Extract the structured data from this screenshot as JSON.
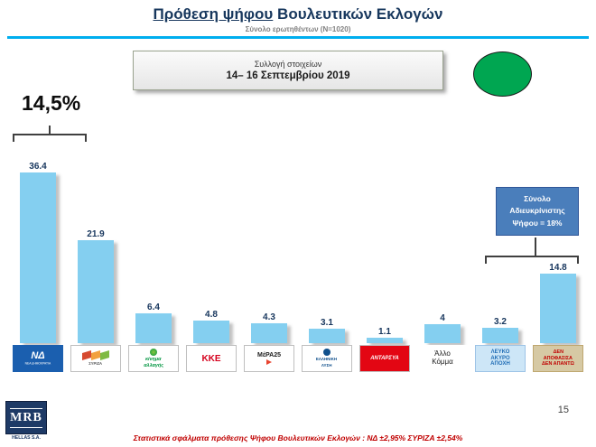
{
  "header": {
    "title_underline": "Πρόθεση ψήφου",
    "title_rest": " Βουλευτικών Εκλογών",
    "subtitle": "Σύνολο ερωτηθέντων (N=1020)"
  },
  "collection_box": {
    "line1": "Συλλογή στοιχείων",
    "line2": "14– 16 Σεπτεμβρίου 2019"
  },
  "annotations": {
    "difference_label": "14,5%",
    "undecided_note": "Σύνολο Αδιευκρίνιστης Ψήφου = 18%"
  },
  "footer": {
    "note": "Στατιστικά σφάλματα πρόθεσης Ψήφου Βουλευτικών Εκλογών : ΝΔ ±2,95% ΣΥΡΙΖΑ ±2,54%",
    "page_number": "15",
    "logo_text": "MRB",
    "logo_subtext": "HELLAS S.A."
  },
  "colors": {
    "bar": "#84CFF0",
    "accent_line": "#00AEEF",
    "undecided_box_bg": "#4A7EBB",
    "green_oval": "#00A651",
    "footer_text": "#C00000",
    "title_text": "#17375D"
  },
  "chart_data": {
    "type": "bar",
    "title": "Πρόθεση ψήφου Βουλευτικών Εκλογών",
    "subtitle": "Σύνολο ερωτηθέντων (N=1020)",
    "categories": [
      "ΝΔ (ΝΕΑ ΔΗΜΟΚΡΑΤΙΑ)",
      "ΣΥΡΙΖΑ",
      "ΚΙΝΗΜΑ ΑΛΛΑΓΗΣ",
      "ΚΚΕ",
      "ΜέΡΑ25",
      "ΕΛΛΗΝΙΚΗ ΛΥΣΗ",
      "ΑΝΤΑΡΣΥΑ",
      "Άλλο Κόμμα",
      "ΛΕΥΚΟ ΑΚΥΡΟ ΑΠΟΧΗ",
      "ΔΕΝ ΑΠΟΦΑΣΙΣΑ ΔΕΝ ΑΠΑΝΤΩ"
    ],
    "values": [
      36.4,
      21.9,
      6.4,
      4.8,
      4.3,
      3.1,
      1.1,
      4,
      3.2,
      14.8
    ],
    "value_labels": [
      "36.4",
      "21.9",
      "6.4",
      "4.8",
      "4.3",
      "3.1",
      "1.1",
      "4",
      "3.2",
      "14.8"
    ],
    "ylim": [
      0,
      40
    ],
    "grid": false,
    "legend": "none",
    "annotations": [
      {
        "text": "14,5%"
      },
      {
        "text": "Σύνολο Αδιευκρίνιστης Ψήφου = 18%"
      }
    ]
  },
  "parties": [
    {
      "logo": "nea-dimokratia-logo",
      "lines": [
        "ΝΔ",
        "ΝΕΑ ΔΗΜΟΚΡΑΤΙΑ"
      ],
      "fg": "#FFFFFF",
      "bg": "#1B5FAF"
    },
    {
      "logo": "syriza-logo",
      "lines": [
        "ΣΥΡΙΖΑ"
      ],
      "fg": "#58595B",
      "bg": "#FFFFFF"
    },
    {
      "logo": "kinima-allagis-logo",
      "lines": [
        "κίνημα",
        "αλλαγής"
      ],
      "fg": "#009540",
      "bg": "#FFFFFF"
    },
    {
      "logo": "kke-logo",
      "lines": [
        "ΚΚΕ"
      ],
      "fg": "#D5001C",
      "bg": "#FFFFFF"
    },
    {
      "logo": "mera25-logo",
      "lines": [
        "ΜέΡΑ25"
      ],
      "fg": "#1A1A1A",
      "bg": "#FFFFFF"
    },
    {
      "logo": "elliniki-lysi-logo",
      "lines": [
        "ΕΛΛΗΝΙΚΗ",
        "ΛΥΣΗ"
      ],
      "fg": "#10508C",
      "bg": "#FFFFFF"
    },
    {
      "logo": "antarsya-logo",
      "lines": [
        "ΑΝΤΑΡΣΥΑ"
      ],
      "fg": "#FFFFFF",
      "bg": "#E30613"
    },
    {
      "logo": "other-party-label",
      "lines": [
        "Άλλο",
        "Κόμμα"
      ],
      "fg": "#1A1A1A",
      "bg": "#FFFFFF"
    },
    {
      "logo": "blank-invalid-abstain-label",
      "lines": [
        "ΛΕΥΚΟ",
        "ΑΚΥΡΟ",
        "ΑΠΟΧΗ"
      ],
      "fg": "#1F6CB5",
      "bg": "#CDE6F7"
    },
    {
      "logo": "undecided-no-answer-label",
      "lines": [
        "ΔΕΝ",
        "ΑΠΟΦΑΣΙΣΑ",
        "ΔΕΝ ΑΠΑΝΤΩ"
      ],
      "fg": "#C00000",
      "bg": "#D6C9A4"
    }
  ]
}
